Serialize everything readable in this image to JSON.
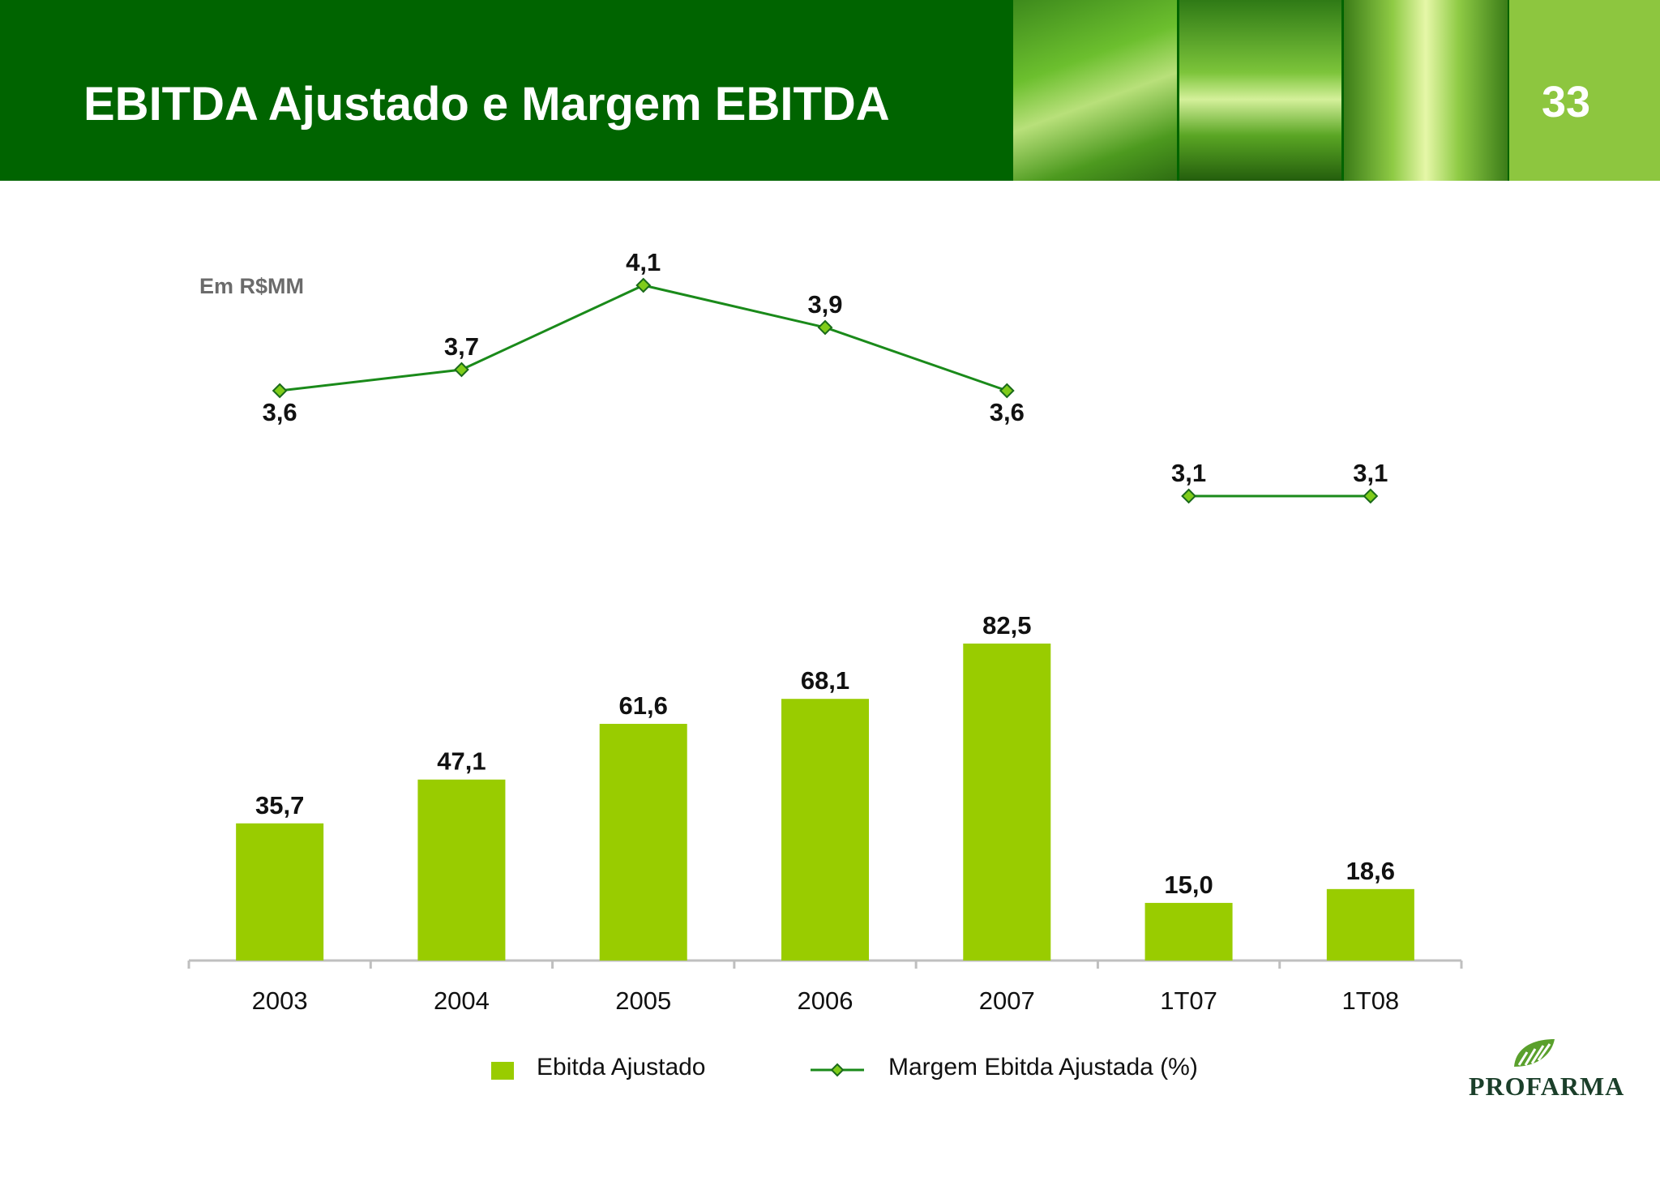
{
  "header": {
    "title": "EBITDA Ajustado e Margem EBITDA",
    "page_number": "33",
    "background_color": "#006400",
    "page_box_color": "#8dc63f"
  },
  "unit_label": "Em R$MM",
  "chart_data": {
    "type": "bar",
    "categories": [
      "2003",
      "2004",
      "2005",
      "2006",
      "2007",
      "1T07",
      "1T08"
    ],
    "series": [
      {
        "name": "Ebitda Ajustado",
        "type": "bar",
        "color": "#99cc00",
        "values": [
          35.7,
          47.1,
          61.6,
          68.1,
          82.5,
          15.0,
          18.6
        ],
        "labels": [
          "35,7",
          "47,1",
          "61,6",
          "68,1",
          "82,5",
          "15,0",
          "18,6"
        ]
      },
      {
        "name": "Margem Ebitda Ajustada (%)",
        "type": "line",
        "color": "#1a8a1a",
        "marker_color": "#7fcc1a",
        "values": [
          3.6,
          3.7,
          4.1,
          3.9,
          3.6,
          3.1,
          3.1
        ],
        "labels": [
          "3,6",
          "3,7",
          "4,1",
          "3,9",
          "3,6",
          "3,1",
          "3,1"
        ],
        "line_segments": [
          [
            0,
            4
          ],
          [
            5,
            6
          ]
        ]
      }
    ],
    "legend_placement": "bottom",
    "grid": false
  },
  "logo": {
    "text": "PROFARMA",
    "icon": "profarma-leaf-logo"
  }
}
